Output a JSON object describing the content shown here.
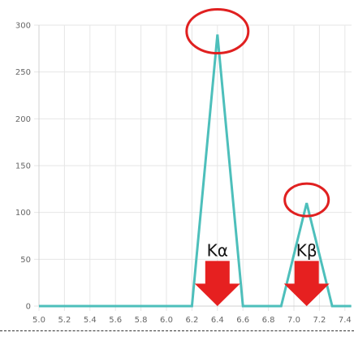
{
  "chart_data": {
    "type": "line",
    "title": "",
    "xlabel": "",
    "ylabel": "",
    "xlim": [
      5.0,
      7.45
    ],
    "ylim": [
      0,
      300
    ],
    "x_ticks": [
      "5.0",
      "5.2",
      "5.4",
      "5.6",
      "5.8",
      "6.0",
      "6.2",
      "6.4",
      "6.6",
      "6.8",
      "7.0",
      "7.2",
      "7.4"
    ],
    "y_ticks": [
      "0",
      "50",
      "100",
      "150",
      "200",
      "250",
      "300"
    ],
    "grid": true,
    "series": [
      {
        "color": "#4dbfbb",
        "x": [
          5.0,
          6.2,
          6.4,
          6.6,
          6.9,
          7.1,
          7.3,
          7.45
        ],
        "y": [
          0,
          0,
          290,
          0,
          0,
          110,
          0,
          0
        ]
      }
    ],
    "annotations": [
      {
        "label": "Kα",
        "x": 6.4,
        "y": 50,
        "kind": "down-arrow",
        "color": "#e62020"
      },
      {
        "label": "Kβ",
        "x": 7.1,
        "y": 50,
        "kind": "down-arrow",
        "color": "#e62020"
      }
    ],
    "highlights": [
      {
        "kind": "circle",
        "x": 6.4,
        "y": 290,
        "color": "#e02020"
      },
      {
        "kind": "circle",
        "x": 7.1,
        "y": 110,
        "color": "#e02020"
      }
    ]
  }
}
